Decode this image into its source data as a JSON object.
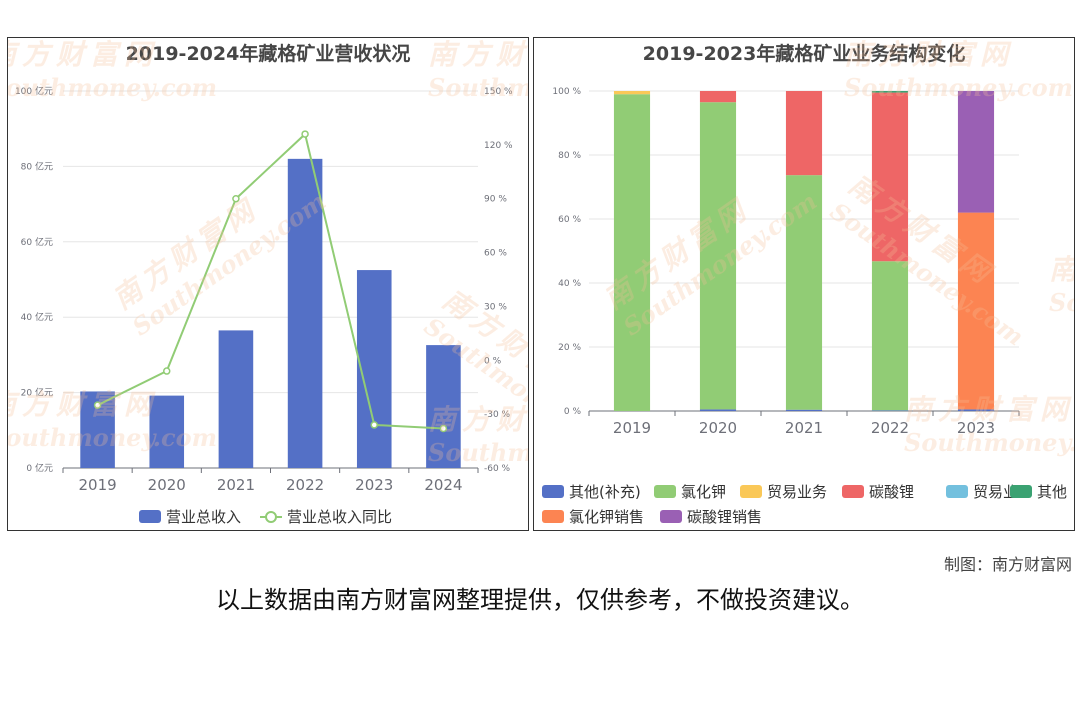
{
  "left_chart": {
    "title": "2019-2024年藏格矿业营收状况",
    "legend": [
      "营业总收入",
      "营业总收入同比"
    ],
    "left_ticks": [
      "0 亿元",
      "20 亿元",
      "40 亿元",
      "60 亿元",
      "80 亿元",
      "100 亿元"
    ],
    "right_ticks": [
      "-60 %",
      "-30 %",
      "0 %",
      "30 %",
      "60 %",
      "90 %",
      "120 %",
      "150 %"
    ]
  },
  "right_chart": {
    "title": "2019-2023年藏格矿业业务结构变化",
    "y_ticks": [
      "0 %",
      "20 %",
      "40 %",
      "60 %",
      "80 %",
      "100 %"
    ],
    "legend": [
      "其他(补充)",
      "氯化钾",
      "贸易业务",
      "碳酸锂",
      "贸易业",
      "其他",
      "氯化钾销售",
      "碳酸锂销售"
    ]
  },
  "chart_data": [
    {
      "type": "bar",
      "title": "2019-2024年藏格矿业营收状况",
      "categories": [
        "2019",
        "2020",
        "2021",
        "2022",
        "2023",
        "2024"
      ],
      "series": [
        {
          "name": "营业总收入",
          "kind": "bar",
          "axis": "left",
          "color": "#5470c6",
          "values": [
            20.3,
            19.2,
            36.5,
            82.0,
            52.5,
            32.6
          ]
        },
        {
          "name": "营业总收入同比",
          "kind": "line",
          "axis": "right",
          "color": "#91cc75",
          "values": [
            -25.0,
            -6.0,
            90.0,
            126.0,
            -36.0,
            -38.0
          ]
        }
      ],
      "ylim_left": [
        0,
        100
      ],
      "ylim_right": [
        -60,
        150
      ],
      "grid": true,
      "legend_position": "bottom"
    },
    {
      "type": "bar",
      "stacked": true,
      "title": "2019-2023年藏格矿业业务结构变化",
      "categories": [
        "2019",
        "2020",
        "2021",
        "2022",
        "2023"
      ],
      "series": [
        {
          "name": "其他(补充)",
          "color": "#5470c6",
          "values": [
            0,
            0.5,
            0.4,
            0.2,
            0.5
          ]
        },
        {
          "name": "氯化钾",
          "color": "#91cc75",
          "values": [
            99.0,
            96.0,
            73.3,
            46.6,
            0
          ]
        },
        {
          "name": "贸易业务",
          "color": "#fac858",
          "values": [
            1.0,
            0,
            0,
            0,
            0
          ]
        },
        {
          "name": "碳酸锂",
          "color": "#ee6666",
          "values": [
            0,
            3.5,
            26.3,
            52.7,
            0
          ]
        },
        {
          "name": "贸易业",
          "color": "#73c0de",
          "values": [
            0,
            0,
            0,
            0,
            0
          ]
        },
        {
          "name": "其他",
          "color": "#3ba272",
          "values": [
            0,
            0,
            0,
            0.5,
            0
          ]
        },
        {
          "name": "氯化钾销售",
          "color": "#fc8452",
          "values": [
            0,
            0,
            0,
            0,
            61.5
          ]
        },
        {
          "name": "碳酸锂销售",
          "color": "#9a60b4",
          "values": [
            0,
            0,
            0,
            0,
            38.0
          ]
        }
      ],
      "ylim": [
        0,
        100
      ],
      "grid": true,
      "legend_position": "bottom"
    }
  ],
  "footer": {
    "credit": "制图：南方财富网",
    "disclaimer": "以上数据由南方财富网整理提供，仅供参考，不做投资建议。"
  },
  "watermark": {
    "cn": "南方财富网",
    "en": "Southmoney.com"
  }
}
